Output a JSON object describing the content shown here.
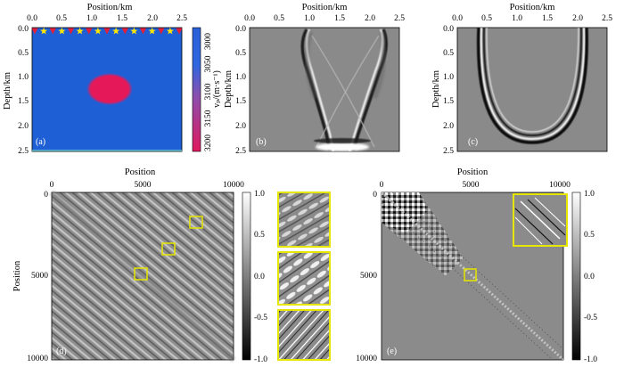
{
  "panels": {
    "a": {
      "label": "(a)",
      "x_axis": {
        "title": "Position/km",
        "ticks": [
          "0.0",
          "0.5",
          "1.0",
          "1.5",
          "2.0",
          "2.5"
        ]
      },
      "y_axis": {
        "title": "Depth/km",
        "ticks": [
          "0.0",
          "0.5",
          "1.0",
          "1.5",
          "2.0",
          "2.5"
        ]
      },
      "colorbar": {
        "label": "vₚ/(m·s⁻¹)",
        "ticks": [
          "3000",
          "3050",
          "3100",
          "3150",
          "3200"
        ]
      },
      "colors": {
        "background": "#1f5fd6",
        "anomaly": "#e5195a",
        "receiver": "#e0203a",
        "source": "#ffe600",
        "colorbar_top": "#2a5fd8",
        "colorbar_bottom": "#e0185e"
      },
      "source_icon": "star-icon",
      "receiver_icon": "triangle-down-icon"
    },
    "b": {
      "label": "(b)",
      "x_axis": {
        "title": "Position/km",
        "ticks": [
          "0.0",
          "0.5",
          "1.0",
          "1.5",
          "2.0",
          "2.5"
        ]
      },
      "y_axis": {
        "title": "Depth/km",
        "ticks": [
          "0.0",
          "0.5",
          "1.0",
          "1.5",
          "2.0",
          "2.5"
        ]
      }
    },
    "c": {
      "label": "(c)",
      "x_axis": {
        "title": "Position/km",
        "ticks": [
          "0.0",
          "0.5",
          "1.0",
          "1.5",
          "2.0",
          "2.5"
        ]
      },
      "y_axis": {
        "title": "Depth/km",
        "ticks": [
          "0.0",
          "0.5",
          "1.0",
          "1.5",
          "2.0",
          "2.5"
        ]
      }
    },
    "d": {
      "label": "(d)",
      "x_axis": {
        "title": "Position",
        "ticks": [
          "0",
          "5000",
          "10000"
        ]
      },
      "y_axis": {
        "title": "Position",
        "ticks": [
          "0",
          "5000",
          "10000"
        ]
      },
      "colorbar": {
        "ticks": [
          "1.0",
          "0.5",
          "0.0",
          "-0.5",
          "-1.0"
        ]
      },
      "highlight_color": "#e6e600"
    },
    "e": {
      "label": "(e)",
      "x_axis": {
        "title": "Position",
        "ticks": [
          "0",
          "5000",
          "10000"
        ]
      },
      "y_axis": {
        "ticks": [
          "0",
          "5000",
          "10000"
        ]
      },
      "colorbar": {
        "ticks": [
          "1.0",
          "0.5",
          "0.0",
          "-0.5",
          "-1.0"
        ]
      },
      "highlight_color": "#e6e600"
    }
  }
}
